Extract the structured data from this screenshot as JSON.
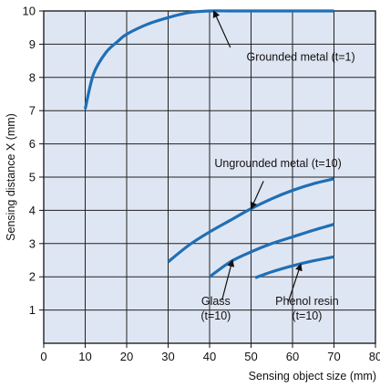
{
  "chart_data": {
    "type": "line",
    "xlabel": "Sensing object size (mm)",
    "ylabel": "Sensing distance X (mm)",
    "xlim": [
      0,
      80
    ],
    "ylim": [
      0,
      10
    ],
    "xticks": [
      0,
      10,
      20,
      30,
      40,
      50,
      60,
      70,
      80
    ],
    "yticks": [
      1,
      2,
      3,
      4,
      5,
      6,
      7,
      8,
      9,
      10
    ],
    "grid": true,
    "colors": {
      "plot_background": "#dfe6f3",
      "grid": "#222222",
      "line": "#1f6fb5"
    },
    "series": [
      {
        "x": [
          10,
          12,
          15,
          18,
          20,
          25,
          30,
          35,
          40,
          45,
          50,
          55,
          60,
          65,
          70
        ],
        "y": [
          7.05,
          8.1,
          8.75,
          9.1,
          9.3,
          9.6,
          9.8,
          9.95,
          10.0,
          10.0,
          10.0,
          10.0,
          10.0,
          10.0,
          10.0
        ]
      },
      {
        "x": [
          30,
          35,
          40,
          45,
          50,
          55,
          60,
          65,
          70
        ],
        "y": [
          2.45,
          2.95,
          3.35,
          3.7,
          4.05,
          4.35,
          4.6,
          4.8,
          4.95
        ]
      },
      {
        "x": [
          40,
          45,
          50,
          55,
          60,
          65,
          70
        ],
        "y": [
          2.0,
          2.45,
          2.75,
          3.0,
          3.2,
          3.4,
          3.58
        ]
      },
      {
        "x": [
          51,
          55,
          60,
          65,
          70
        ],
        "y": [
          1.97,
          2.15,
          2.33,
          2.48,
          2.6
        ]
      }
    ],
    "annotations": [
      {
        "lines": [
          "Grounded metal (t=1)"
        ],
        "text_at": [
          62,
          8.5
        ],
        "point_at": [
          41,
          10.0
        ],
        "arrow_from": [
          45,
          8.9
        ],
        "anchor": "middle"
      },
      {
        "lines": [
          "Ungrounded metal (t=10)"
        ],
        "text_at": [
          56.5,
          5.3
        ],
        "point_at": [
          50,
          4.05
        ],
        "arrow_from": [
          53,
          4.88
        ],
        "anchor": "middle"
      },
      {
        "lines": [
          "Glass",
          "(t=10)"
        ],
        "text_at": [
          41.5,
          1.15
        ],
        "point_at": [
          45.5,
          2.5
        ],
        "arrow_from": [
          43,
          1.3
        ],
        "anchor": "middle"
      },
      {
        "lines": [
          "Phenol resin",
          "(t=10)"
        ],
        "text_at": [
          63.5,
          1.15
        ],
        "point_at": [
          62,
          2.38
        ],
        "arrow_from": [
          59,
          1.25
        ],
        "anchor": "middle"
      }
    ]
  }
}
